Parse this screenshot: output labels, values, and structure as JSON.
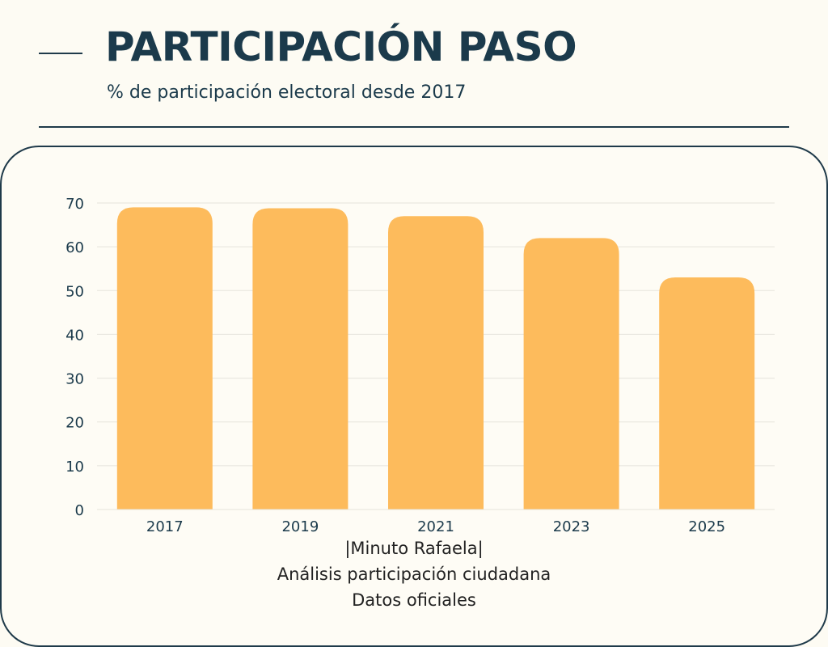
{
  "header": {
    "title": "PARTICIPACIÓN PASO",
    "subtitle": "% de participación electoral desde 2017"
  },
  "footer": {
    "line1": "|Minuto Rafaela|",
    "line2": "Análisis participación ciudadana",
    "line3": "Datos oficiales"
  },
  "colors": {
    "bar": "#fdbb5c",
    "text": "#1b3a4b",
    "grid": "#e6e4dc"
  },
  "chart_data": {
    "type": "bar",
    "title": "PARTICIPACIÓN PASO",
    "subtitle": "% de participación electoral desde 2017",
    "xlabel": "",
    "ylabel": "",
    "categories": [
      "2017",
      "2019",
      "2021",
      "2023",
      "2025"
    ],
    "values": [
      69,
      68.8,
      67,
      62,
      53
    ],
    "ylim": [
      0,
      70
    ],
    "yticks": [
      0,
      10,
      20,
      30,
      40,
      50,
      60,
      70
    ],
    "grid": true,
    "legend": "none"
  }
}
